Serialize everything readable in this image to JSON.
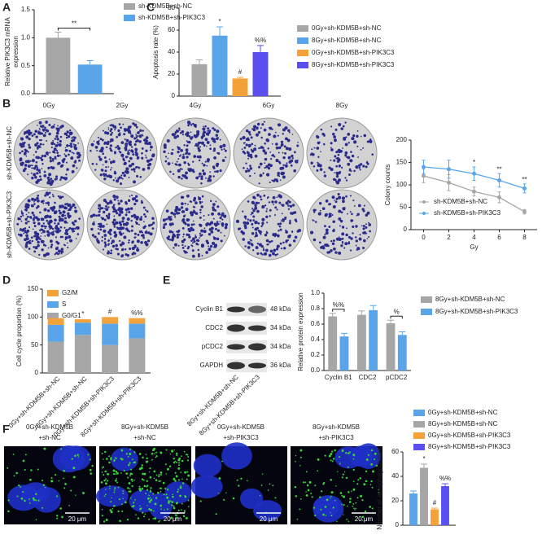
{
  "panel_labels": [
    "A",
    "B",
    "C",
    "D",
    "E",
    "F"
  ],
  "colony_assay": {
    "doses": [
      "0Gy",
      "2Gy",
      "4Gy",
      "6Gy",
      "8Gy"
    ],
    "rows": [
      "sh-KDM5B+sh-NC",
      "sh-KDM5B+sh-PIK3C3"
    ]
  },
  "western_blot": {
    "proteins": [
      "Cyclin B1",
      "CDC2",
      "pCDC2",
      "GAPDH"
    ],
    "sizes": [
      "48 kDa",
      "34 kDa",
      "34 kDa",
      "36 kDa"
    ],
    "lanes": [
      "8Gy+sh-KDM5B+sh-NC",
      "8Gy+sh-KDM5B+sh-PIK3C3"
    ]
  },
  "micrographs": {
    "titles": [
      [
        "0Gy+sh-KDM5B",
        "+sh-NC"
      ],
      [
        "8Gy+sh-KDM5B",
        "+sh-NC"
      ],
      [
        "0Gy+sh-KDM5B",
        "+sh-PIK3C3"
      ],
      [
        "8Gy+sh-KDM5B",
        "+sh-PIK3C3"
      ]
    ],
    "scale_bar": "20 μm"
  },
  "chart_data": [
    {
      "type": "bar",
      "ylabel": [
        "Relative PIK3C3 mRNA",
        "expression"
      ],
      "categories": [
        null
      ],
      "series": [
        {
          "name": "sh-KDM5B+sh-NC",
          "color": "#a6a6a6",
          "values": [
            1.0
          ],
          "errors": [
            0.1
          ]
        },
        {
          "name": "sh-KDM5B+sh-PIK3C3",
          "color": "#5aa5ea",
          "values": [
            0.52
          ],
          "errors": [
            0.07
          ]
        }
      ],
      "ylim": [
        0,
        1.5
      ],
      "yticks": [
        {
          "value": 0,
          "label": "0.0"
        },
        0.5,
        {
          "value": 1,
          "label": "1.0"
        },
        1.5
      ],
      "annotations": [
        "**"
      ],
      "legend": "right"
    },
    {
      "type": "bar",
      "ylabel": [
        "Apoptosis rate (%)"
      ],
      "categories": [
        null
      ],
      "series": [
        {
          "name": "0Gy+sh-KDM5B+sh-NC",
          "color": "#a6a6a6",
          "values": [
            29
          ],
          "errors": [
            4
          ]
        },
        {
          "name": "8Gy+sh-KDM5B+sh-NC",
          "color": "#5aa5ea",
          "values": [
            55
          ],
          "errors": [
            8
          ]
        },
        {
          "name": "0Gy+sh-KDM5B+sh-PIK3C3",
          "color": "#f5a13a",
          "values": [
            16
          ],
          "errors": [
            1
          ]
        },
        {
          "name": "8Gy+sh-KDM5B+sh-PIK3C3",
          "color": "#5b4ff0",
          "values": [
            40
          ],
          "errors": [
            6
          ]
        }
      ],
      "ylim": [
        0,
        80
      ],
      "yticks": [
        0,
        20,
        40,
        60,
        80
      ],
      "annotations": [
        null,
        "*",
        "#",
        "%%"
      ],
      "legend": "right"
    },
    {
      "type": "line",
      "ylabel": [
        "Colony counts"
      ],
      "xlabel": "Gy",
      "x": [
        0,
        2,
        4,
        6,
        8
      ],
      "series": [
        {
          "name": "sh-KDM5B+sh-NC",
          "color": "#a6a6a6",
          "values": [
            120,
            105,
            85,
            72,
            40
          ],
          "errors": [
            15,
            18,
            10,
            12,
            5
          ]
        },
        {
          "name": "sh-KDM5B+sh-PIK3C3",
          "color": "#5aa5ea",
          "values": [
            140,
            135,
            125,
            110,
            92
          ],
          "errors": [
            15,
            20,
            15,
            15,
            10
          ]
        }
      ],
      "xlim": [
        -1,
        9
      ],
      "xticks": [
        0,
        2,
        4,
        6,
        8
      ],
      "ylim": [
        0,
        200
      ],
      "yticks": [
        0,
        50,
        100,
        150,
        200
      ],
      "annotations": [
        null,
        null,
        "*",
        "**",
        "**"
      ],
      "legend": "lower-left"
    },
    {
      "type": "stacked_bar",
      "ylabel": [
        "Cell cycle proportion (%)"
      ],
      "categories": [
        "0Gy+sh-KDM5B+sh-NC",
        "8Gy+sh-KDM5B+sh-NC",
        "0Gy+sh-KDM5B+sh-PIK3C3",
        "8Gy+sh-KDM5B+sh-PIK3C3"
      ],
      "series": [
        {
          "name": "G0/G1",
          "color": "#a6a6a6",
          "values": [
            56,
            68,
            50,
            62
          ]
        },
        {
          "name": "S",
          "color": "#5aa5ea",
          "values": [
            30,
            22,
            38,
            26
          ]
        },
        {
          "name": "G2/M",
          "color": "#f2a23c",
          "values": [
            12,
            6,
            12,
            10
          ]
        }
      ],
      "ylim": [
        0,
        150
      ],
      "yticks": [
        0,
        50,
        100,
        150
      ],
      "annotations": [
        null,
        "*",
        "#",
        "%%"
      ],
      "legend": "upper-left"
    },
    {
      "type": "bar",
      "ylabel": [
        "Relative protein expression"
      ],
      "categories": [
        "Cyclin B1",
        "CDC2",
        "pCDC2"
      ],
      "series": [
        {
          "name": "8Gy+sh-KDM5B+sh-NC",
          "color": "#a6a6a6",
          "values": [
            0.7,
            0.72,
            0.61
          ],
          "errors": [
            0.04,
            0.05,
            0.04
          ]
        },
        {
          "name": "8Gy+sh-KDM5B+sh-PIK3C3",
          "color": "#5aa5ea",
          "values": [
            0.44,
            0.78,
            0.46
          ],
          "errors": [
            0.04,
            0.06,
            0.04
          ]
        }
      ],
      "ylim": [
        0,
        1.0
      ],
      "yticks": [
        {
          "value": 0,
          "label": "0.0"
        },
        0.2,
        0.4,
        0.6,
        0.8,
        {
          "value": 1,
          "label": "1.0"
        }
      ],
      "annotations": [
        "%%",
        null,
        "%"
      ],
      "legend": "right"
    },
    {
      "type": "bar",
      "ylabel": [
        "Number of autophagosomes"
      ],
      "categories": [
        null
      ],
      "series": [
        {
          "name": "0Gy+sh-KDM5B+sh-NC",
          "color": "#5aa5ea",
          "values": [
            26
          ],
          "errors": [
            2
          ]
        },
        {
          "name": "8Gy+sh-KDM5B+sh-NC",
          "color": "#a6a6a6",
          "values": [
            47
          ],
          "errors": [
            3
          ]
        },
        {
          "name": "0Gy+sh-KDM5B+sh-PIK3C3",
          "color": "#f5a13a",
          "values": [
            13
          ],
          "errors": [
            1
          ]
        },
        {
          "name": "8Gy+sh-KDM5B+sh-PIK3C3",
          "color": "#5a4ff0",
          "values": [
            32
          ],
          "errors": [
            2
          ]
        }
      ],
      "ylim": [
        0,
        60
      ],
      "yticks": [
        0,
        20,
        40,
        60
      ],
      "annotations": [
        null,
        "*",
        "#",
        "%%"
      ],
      "legend": "top"
    }
  ]
}
